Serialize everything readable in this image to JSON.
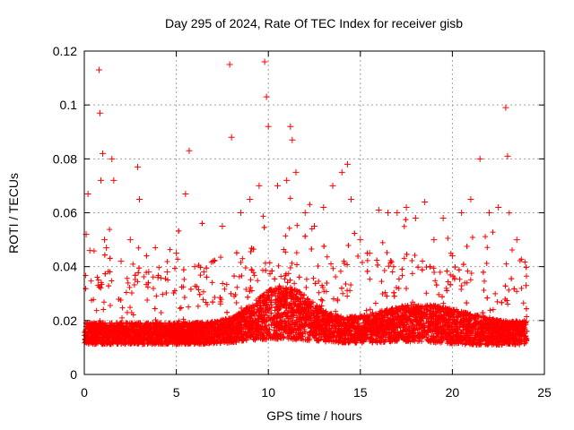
{
  "chart_data": {
    "type": "scatter",
    "title": "Day 295 of 2024, Rate Of TEC Index for receiver gisb",
    "xlabel": "GPS time / hours",
    "ylabel": "ROTI / TECUs",
    "xlim": [
      0,
      25
    ],
    "ylim": [
      0,
      0.12
    ],
    "xticks": [
      "0",
      "5",
      "10",
      "15",
      "20",
      "25"
    ],
    "yticks": [
      "0",
      "0.02",
      "0.04",
      "0.06",
      "0.08",
      "0.1",
      "0.12"
    ],
    "grid": true,
    "marker": "+",
    "point_color": "#ff0000",
    "series": [
      {
        "x": [
          0.1,
          0.2,
          0.3,
          0.8,
          0.85,
          0.9,
          1.0,
          1.1,
          1.2,
          1.5,
          1.6,
          2.0,
          2.5,
          2.9,
          3.0,
          3.5,
          4.0,
          4.5,
          5.0,
          5.5,
          5.7,
          6.0,
          6.5,
          7.0,
          7.5,
          7.9,
          8.0,
          8.5,
          9.0,
          9.5,
          9.8,
          9.9,
          10.0,
          10.5,
          11.0,
          11.2,
          11.3,
          11.5,
          12.0,
          12.5,
          13.0,
          13.5,
          14.0,
          14.3,
          14.5,
          15.0,
          15.5,
          16.0,
          16.5,
          17.0,
          17.5,
          18.0,
          18.5,
          19.0,
          19.5,
          20.0,
          20.5,
          21.0,
          21.5,
          22.0,
          22.5,
          22.9,
          23.0,
          23.5,
          24.0
        ],
        "y": [
          0.052,
          0.067,
          0.046,
          0.113,
          0.097,
          0.072,
          0.082,
          0.05,
          0.047,
          0.08,
          0.072,
          0.042,
          0.05,
          0.077,
          0.065,
          0.038,
          0.036,
          0.038,
          0.045,
          0.067,
          0.083,
          0.04,
          0.038,
          0.042,
          0.055,
          0.115,
          0.088,
          0.06,
          0.065,
          0.07,
          0.116,
          0.103,
          0.092,
          0.07,
          0.072,
          0.092,
          0.087,
          0.075,
          0.06,
          0.055,
          0.062,
          0.07,
          0.075,
          0.078,
          0.065,
          0.05,
          0.045,
          0.061,
          0.06,
          0.06,
          0.062,
          0.058,
          0.064,
          0.05,
          0.058,
          0.044,
          0.06,
          0.065,
          0.08,
          0.06,
          0.062,
          0.099,
          0.081,
          0.05,
          0.033
        ]
      }
    ]
  }
}
